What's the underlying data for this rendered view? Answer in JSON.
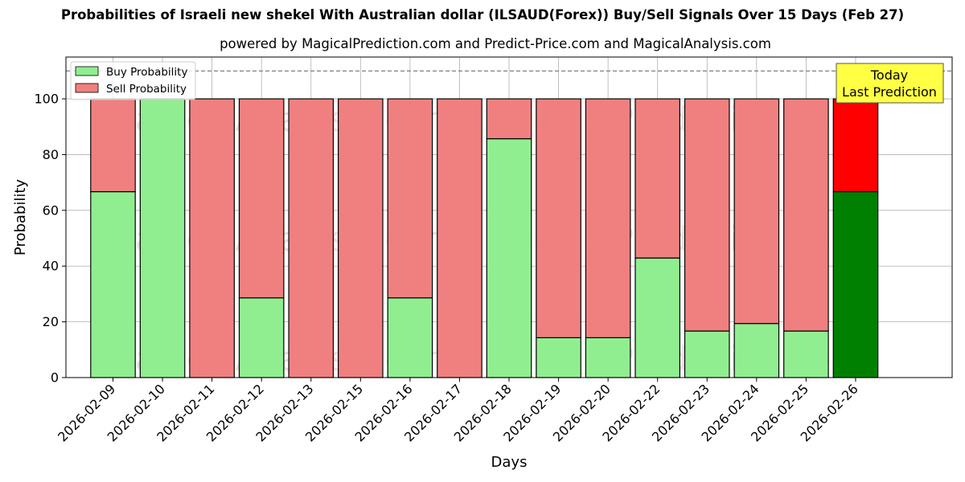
{
  "chart_data": {
    "type": "bar",
    "stacked": true,
    "title": "Probabilities of Israeli new shekel With Australian dollar (ILSAUD(Forex)) Buy/Sell Signals Over 15 Days (Feb 27)",
    "subtitle": "powered by MagicalPrediction.com and Predict-Price.com and MagicalAnalysis.com",
    "xlabel": "Days",
    "ylabel": "Probability",
    "ylim": [
      0,
      115
    ],
    "yticks": [
      0,
      20,
      40,
      60,
      80,
      100
    ],
    "reference_line": 110,
    "grid": true,
    "legend_position": "top-left",
    "categories": [
      "2026-02-09",
      "2026-02-10",
      "2026-02-11",
      "2026-02-12",
      "2026-02-13",
      "2026-02-15",
      "2026-02-16",
      "2026-02-17",
      "2026-02-18",
      "2026-02-19",
      "2026-02-20",
      "2026-02-22",
      "2026-02-23",
      "2026-02-24",
      "2026-02-25",
      "2026-02-26"
    ],
    "series": [
      {
        "name": "Buy Probability",
        "color": "#90ee90",
        "values": [
          66.7,
          100,
          0,
          28.6,
          0,
          0,
          28.6,
          0,
          85.7,
          14.3,
          14.3,
          42.9,
          16.7,
          19.4,
          16.7,
          66.7
        ]
      },
      {
        "name": "Sell Probability",
        "color": "#f08080",
        "values": [
          33.3,
          0,
          100,
          71.4,
          100,
          100,
          71.4,
          100,
          14.3,
          85.7,
          85.7,
          57.1,
          83.3,
          80.6,
          83.3,
          33.3
        ]
      }
    ],
    "highlight": {
      "index": 15,
      "buy_color": "#008000",
      "sell_color": "#ff0000"
    },
    "annotation": {
      "line1": "Today",
      "line2": "Last Prediction",
      "color": "#ffff44"
    },
    "watermarks": [
      "MagicalAnalysis.com",
      "MagicalPrediction.com"
    ]
  }
}
